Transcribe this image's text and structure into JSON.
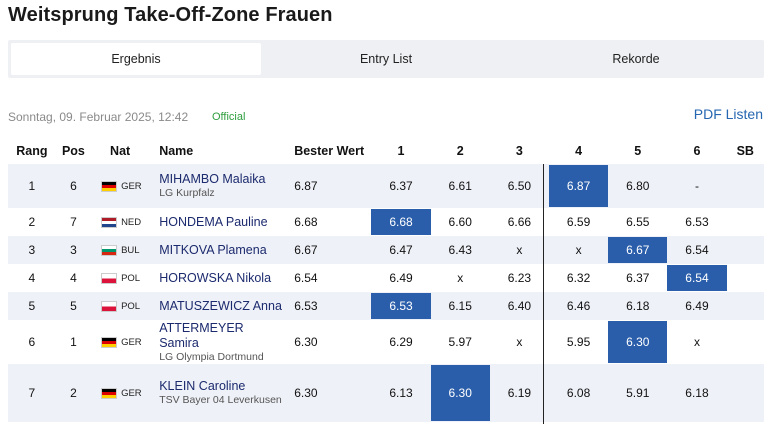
{
  "title": "Weitsprung Take-Off-Zone Frauen",
  "tabs": [
    {
      "label": "Ergebnis",
      "active": true
    },
    {
      "label": "Entry List",
      "active": false
    },
    {
      "label": "Rekorde",
      "active": false
    }
  ],
  "meta": {
    "datetime": "Sonntag, 09. Februar 2025, 12:42",
    "status": "Official",
    "pdf_label": "PDF Listen"
  },
  "colors": {
    "highlight": "#2a5eaa",
    "official": "#2e9e3e",
    "link": "#2566b0",
    "athlete_name": "#1c2a6e"
  },
  "table": {
    "headers": [
      "Rang",
      "Pos",
      "Nat",
      "Name",
      "Bester Wert",
      "1",
      "2",
      "3",
      "4",
      "5",
      "6",
      "SB"
    ],
    "rows": [
      {
        "rang": "1",
        "pos": "6",
        "nat": "GER",
        "name": "MIHAMBO Malaika",
        "club": "LG Kurpfalz",
        "best": "6.87",
        "attempts": [
          "6.37",
          "6.61",
          "6.50",
          "6.87",
          "6.80",
          "-"
        ],
        "best_attempt": 4,
        "sb": ""
      },
      {
        "rang": "2",
        "pos": "7",
        "nat": "NED",
        "name": "HONDEMA Pauline",
        "club": "",
        "best": "6.68",
        "attempts": [
          "6.68",
          "6.60",
          "6.66",
          "6.59",
          "6.55",
          "6.53"
        ],
        "best_attempt": 1,
        "sb": ""
      },
      {
        "rang": "3",
        "pos": "3",
        "nat": "BUL",
        "name": "MITKOVA Plamena",
        "club": "",
        "best": "6.67",
        "attempts": [
          "6.47",
          "6.43",
          "x",
          "x",
          "6.67",
          "6.54"
        ],
        "best_attempt": 5,
        "sb": ""
      },
      {
        "rang": "4",
        "pos": "4",
        "nat": "POL",
        "name": "HOROWSKA Nikola",
        "club": "",
        "best": "6.54",
        "attempts": [
          "6.49",
          "x",
          "6.23",
          "6.32",
          "6.37",
          "6.54"
        ],
        "best_attempt": 6,
        "sb": ""
      },
      {
        "rang": "5",
        "pos": "5",
        "nat": "POL",
        "name": "MATUSZEWICZ Anna",
        "club": "",
        "best": "6.53",
        "attempts": [
          "6.53",
          "6.15",
          "6.40",
          "6.46",
          "6.18",
          "6.49"
        ],
        "best_attempt": 1,
        "sb": ""
      },
      {
        "rang": "6",
        "pos": "1",
        "nat": "GER",
        "name": "ATTERMEYER Samira",
        "club": "LG Olympia Dortmund",
        "best": "6.30",
        "attempts": [
          "6.29",
          "5.97",
          "x",
          "5.95",
          "6.30",
          "x"
        ],
        "best_attempt": 5,
        "sb": ""
      },
      {
        "rang": "7",
        "pos": "2",
        "nat": "GER",
        "name": "KLEIN Caroline",
        "club": "TSV Bayer 04 Leverkusen",
        "best": "6.30",
        "attempts": [
          "6.13",
          "6.30",
          "6.19",
          "6.08",
          "5.91",
          "6.18"
        ],
        "best_attempt": 2,
        "sb": ""
      }
    ]
  }
}
